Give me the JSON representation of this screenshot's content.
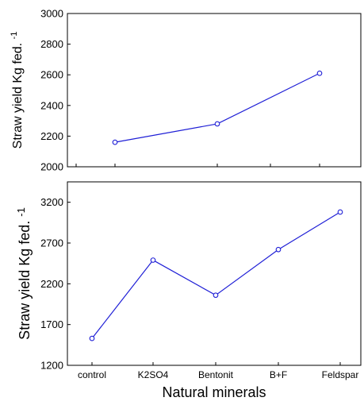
{
  "series_color": "#1f1fd6",
  "chart_data": [
    {
      "type": "line",
      "ylabel": "Straw yield Kg fed. -1",
      "ylabel_main": "Straw yield Kg fed.",
      "ylabel_sup": "-1",
      "xlabel": "",
      "ylim": [
        2000,
        3000
      ],
      "yticks": [
        2000,
        2200,
        2400,
        2600,
        2800,
        3000
      ],
      "categories": [
        "control",
        "K2SO4",
        "Bentonit",
        "B+F",
        "Feldspar"
      ],
      "show_x_tick_labels": false,
      "series": [
        {
          "x": [
            "K2SO4",
            "Bentonit",
            "Feldspar"
          ],
          "values": [
            2160,
            2280,
            2610
          ]
        }
      ],
      "grid": false
    },
    {
      "type": "line",
      "ylabel": "Straw yield Kg fed. -1",
      "ylabel_main": "Straw yield Kg fed.",
      "ylabel_sup": "-1",
      "xlabel": "Natural minerals",
      "ylim": [
        1200,
        3450
      ],
      "yticks": [
        1200,
        1700,
        2200,
        2700,
        3200
      ],
      "categories": [
        "control",
        "K2SO4",
        "Bentonit",
        "B+F",
        "Feldspar"
      ],
      "show_x_tick_labels": true,
      "series": [
        {
          "x": [
            "control",
            "K2SO4",
            "Bentonit",
            "B+F",
            "Feldspar"
          ],
          "values": [
            1530,
            2490,
            2060,
            2620,
            3080
          ]
        }
      ],
      "grid": false
    }
  ]
}
